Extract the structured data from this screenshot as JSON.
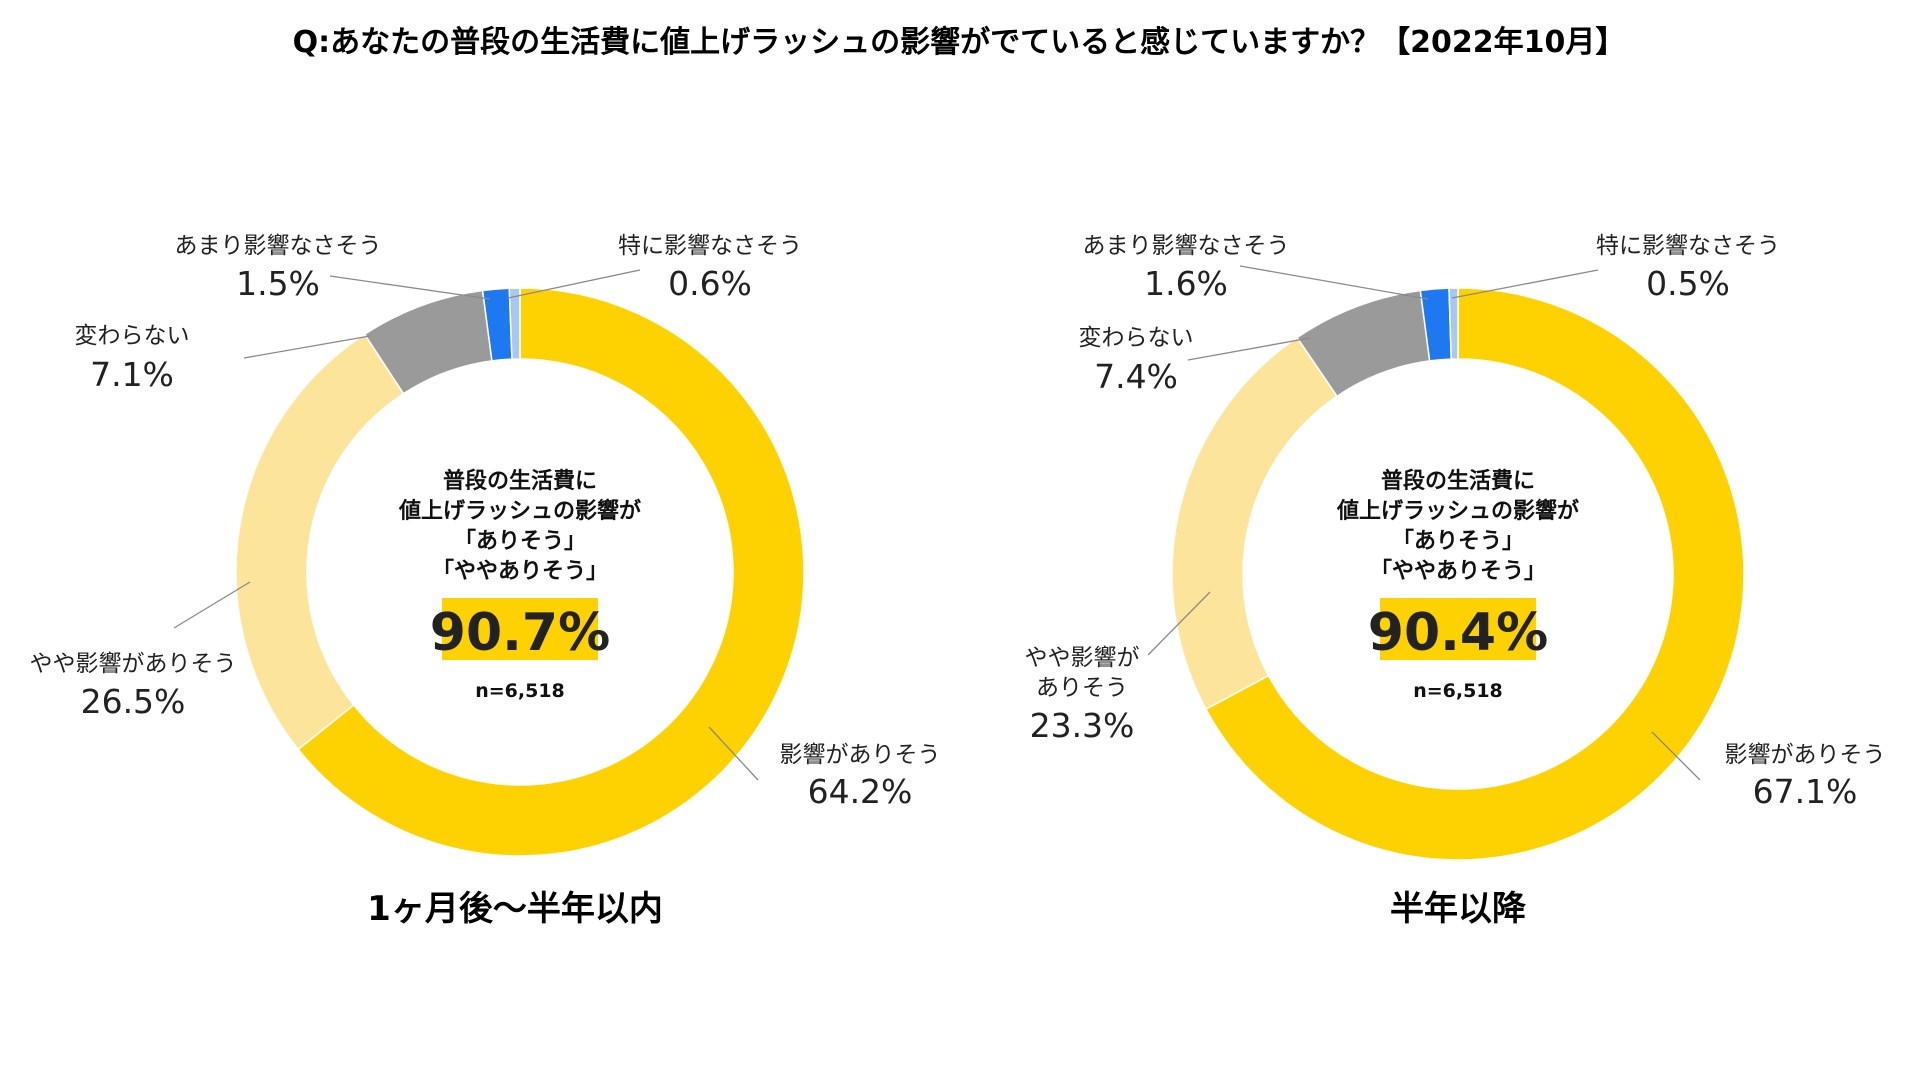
{
  "title": "Q:あなたの普段の生活費に値上げラッシュの影響がでていると感じていますか？【2022年10月】",
  "colors": {
    "strong": "#FDD200",
    "slight": "#FCE49B",
    "unchanged": "#9A9A9A",
    "little": "#1E78F0",
    "none": "#A9C8EE",
    "highlight": "#FDD200"
  },
  "chart_data": [
    {
      "type": "pie",
      "variant": "donut",
      "caption": "1ヶ月後～半年以内",
      "center": {
        "lines": [
          "普段の生活費に",
          "値上げラッシュの影響が",
          "「ありそう」",
          "「ややありそう」"
        ],
        "total_label": "90.7%",
        "total": 90.7,
        "n_label": "n=6,518"
      },
      "slices": [
        {
          "label": "影響がありそう",
          "value": 64.2,
          "value_label": "64.2%",
          "color_key": "strong"
        },
        {
          "label": "やや影響がありそう",
          "value": 26.5,
          "value_label": "26.5%",
          "color_key": "slight"
        },
        {
          "label": "変わらない",
          "value": 7.1,
          "value_label": "7.1%",
          "color_key": "unchanged"
        },
        {
          "label": "あまり影響なさそう",
          "value": 1.5,
          "value_label": "1.5%",
          "color_key": "little"
        },
        {
          "label": "特に影響なさそう",
          "value": 0.6,
          "value_label": "0.6%",
          "color_key": "none"
        }
      ]
    },
    {
      "type": "pie",
      "variant": "donut",
      "caption": "半年以降",
      "center": {
        "lines": [
          "普段の生活費に",
          "値上げラッシュの影響が",
          "「ありそう」",
          "「ややありそう」"
        ],
        "total_label": "90.4%",
        "total": 90.4,
        "n_label": "n=6,518"
      },
      "slices": [
        {
          "label": "影響がありそう",
          "value": 67.1,
          "value_label": "67.1%",
          "color_key": "strong"
        },
        {
          "label": "やや影響が ありそう",
          "label_lines": [
            "やや影響が",
            "ありそう"
          ],
          "value": 23.3,
          "value_label": "23.3%",
          "color_key": "slight"
        },
        {
          "label": "変わらない",
          "value": 7.4,
          "value_label": "7.4%",
          "color_key": "unchanged"
        },
        {
          "label": "あまり影響なさそう",
          "value": 1.6,
          "value_label": "1.6%",
          "color_key": "little"
        },
        {
          "label": "特に影響なさそう",
          "value": 0.5,
          "value_label": "0.5%",
          "color_key": "none"
        }
      ]
    }
  ]
}
